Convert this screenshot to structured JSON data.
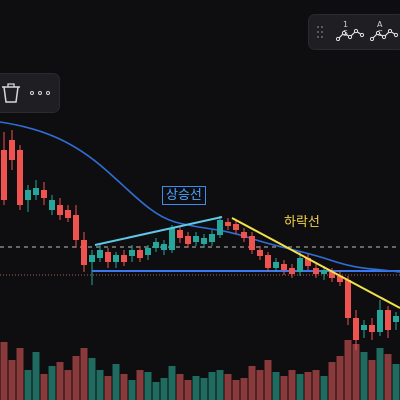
{
  "chart": {
    "uptrend_label": "상승선",
    "downtrend_label": "하락선",
    "colors": {
      "background": "#0e0e10",
      "up_candle": "#26a69a",
      "down_candle": "#ef5350",
      "moving_average": "#2f6fd6",
      "uptrend_line": "#5ec8e6",
      "downtrend_line": "#f2e14a",
      "support_line": "#3a78f0",
      "dashed_level": "#bdbdbd"
    }
  },
  "pattern_toolbar": {
    "drag_icon": "drag-handle-icon",
    "buttons": [
      {
        "label": "1 5",
        "icon": "wave-pattern-icon"
      },
      {
        "label": "A C",
        "icon": "abc-pattern-icon"
      }
    ]
  },
  "drawing_toolbar": {
    "buttons": [
      {
        "icon": "trash-icon"
      },
      {
        "icon": "more-options-icon"
      }
    ]
  }
}
